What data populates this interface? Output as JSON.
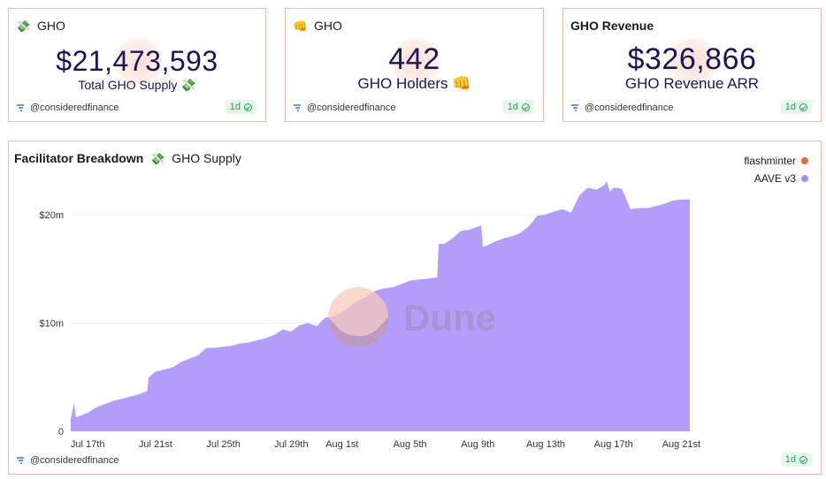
{
  "cards": [
    {
      "title": "GHO",
      "emoji": "💸",
      "value": "$21,473,593",
      "label": "Total GHO Supply 💸",
      "author": "@consideredfinance",
      "badge": "1d"
    },
    {
      "title": "GHO",
      "emoji": "👊",
      "value": "442",
      "label": "GHO Holders 👊",
      "author": "@consideredfinance",
      "badge": "1d"
    },
    {
      "title": "GHO Revenue",
      "emoji": "",
      "value": "$326,866",
      "label": "GHO Revenue ARR",
      "author": "@consideredfinance",
      "badge": "1d"
    }
  ],
  "chart_panel": {
    "title": "Facilitator Breakdown",
    "emoji": "💸",
    "subtitle": "GHO Supply",
    "watermark": "Dune",
    "author": "@consideredfinance",
    "badge": "1d"
  },
  "colors": {
    "accent_border": "#f3b8b0",
    "aave_v3": "#a78bfa",
    "flashminter": "#e8643c",
    "counter_text": "#1c1458"
  },
  "chart_data": {
    "type": "area",
    "title": "",
    "xlabel": "",
    "ylabel": "",
    "x_tick_labels": [
      "Jul 17th",
      "Jul 21st",
      "Jul 25th",
      "Jul 29th",
      "Aug 1st",
      "Aug 5th",
      "Aug 9th",
      "Aug 13th",
      "Aug 17th",
      "Aug 21st"
    ],
    "x_tick_days": [
      1,
      5,
      9,
      13,
      16,
      20,
      24,
      28,
      32,
      36
    ],
    "y_tick_labels": [
      "0",
      "$10m",
      "$20m"
    ],
    "y_tick_values": [
      0,
      10,
      20
    ],
    "ylim": [
      0,
      23.5
    ],
    "xlim": [
      0,
      36.5
    ],
    "y_unit": "USD millions",
    "legend_position": "right",
    "grid": "horizontal",
    "stacked": true,
    "x_note": "day offset from Jul 16th",
    "series": [
      {
        "name": "flashminter",
        "color": "#e8643c",
        "x": [
          0,
          36.5
        ],
        "values": [
          0,
          0
        ]
      },
      {
        "name": "AAVE v3",
        "color": "#a78bfa",
        "x": [
          0,
          0.2,
          0.3,
          0.5,
          1.0,
          1.5,
          2.0,
          2.5,
          3.0,
          3.5,
          4.0,
          4.5,
          4.6,
          5.0,
          5.5,
          6.0,
          6.5,
          7.0,
          7.5,
          8.0,
          8.5,
          9.0,
          9.5,
          10.0,
          10.5,
          11.0,
          11.5,
          12.0,
          12.5,
          13.0,
          13.5,
          14.0,
          14.5,
          15.0,
          15.5,
          16.0,
          16.5,
          17.0,
          17.5,
          18.0,
          18.5,
          19.0,
          19.5,
          20.0,
          20.5,
          21.0,
          21.6,
          21.7,
          22.0,
          22.5,
          23.0,
          23.5,
          24.0,
          24.2,
          24.3,
          24.6,
          25.0,
          25.5,
          26.0,
          26.5,
          27.0,
          27.5,
          28.0,
          28.5,
          29.0,
          29.5,
          30.0,
          30.5,
          31.0,
          31.5,
          31.6,
          31.8,
          32.0,
          32.5,
          33.0,
          33.5,
          34.0,
          34.5,
          35.0,
          35.5,
          36.0,
          36.5
        ],
        "values": [
          1.2,
          2.6,
          1.3,
          1.4,
          1.7,
          2.2,
          2.5,
          2.8,
          3.0,
          3.2,
          3.4,
          3.7,
          5.0,
          5.5,
          5.7,
          5.9,
          6.4,
          6.7,
          7.0,
          7.7,
          7.7,
          7.8,
          7.9,
          8.1,
          8.2,
          8.4,
          8.6,
          8.9,
          9.4,
          9.2,
          9.8,
          10.0,
          9.7,
          10.5,
          10.6,
          11.0,
          11.6,
          12.1,
          12.5,
          13.0,
          13.2,
          13.3,
          13.6,
          13.9,
          14.0,
          14.1,
          14.2,
          17.3,
          17.3,
          17.8,
          18.5,
          18.6,
          18.9,
          19.0,
          17.0,
          17.2,
          17.5,
          17.8,
          18.0,
          18.3,
          18.9,
          19.9,
          20.0,
          20.3,
          20.5,
          20.2,
          21.8,
          22.5,
          22.3,
          22.8,
          23.1,
          22.1,
          22.5,
          22.4,
          20.5,
          20.6,
          20.6,
          20.8,
          21.0,
          21.3,
          21.4,
          21.4
        ]
      }
    ]
  }
}
